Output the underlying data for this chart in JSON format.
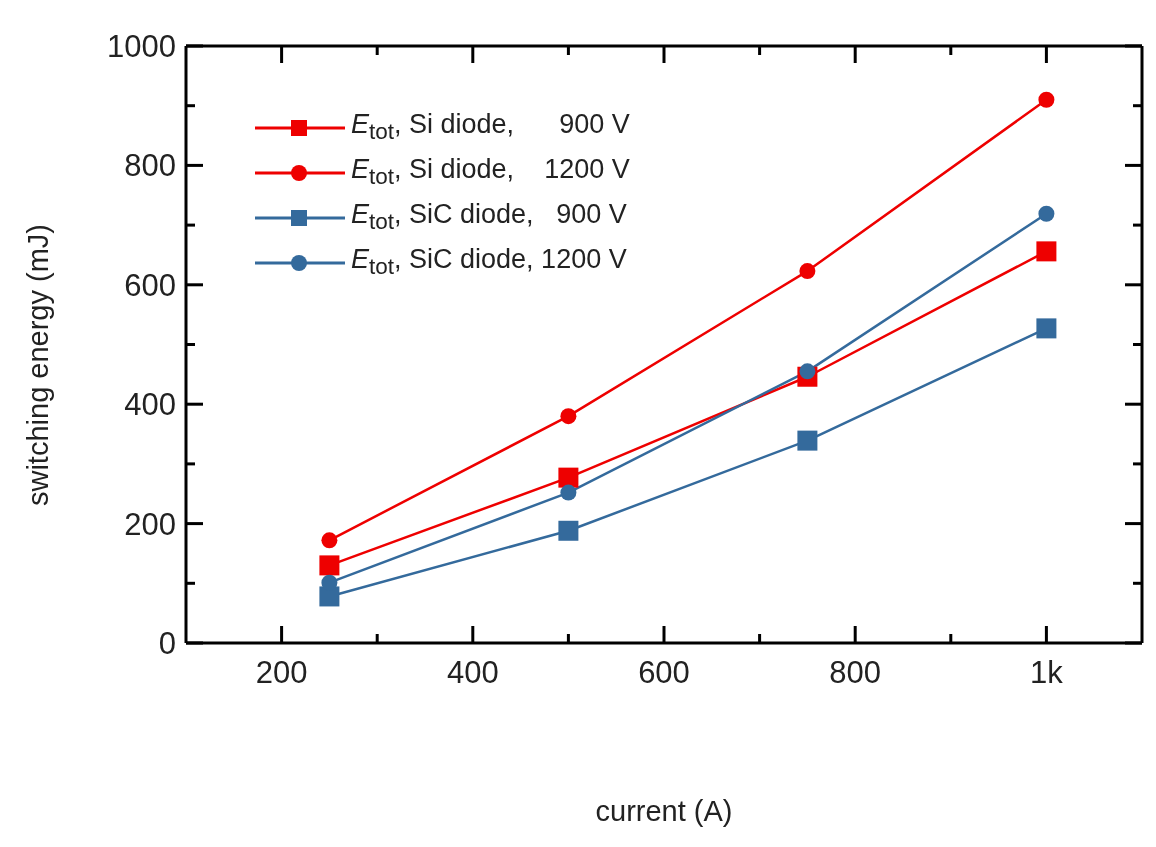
{
  "chart_data": {
    "type": "line",
    "xlabel": "current (A)",
    "ylabel": "switching energy (mJ)",
    "x": [
      250,
      500,
      750,
      1000
    ],
    "xlim": [
      100,
      1100
    ],
    "xticks": [
      {
        "value": 200,
        "label": "200"
      },
      {
        "value": 300,
        "label": null
      },
      {
        "value": 400,
        "label": "400"
      },
      {
        "value": 500,
        "label": null
      },
      {
        "value": 600,
        "label": "600"
      },
      {
        "value": 700,
        "label": null
      },
      {
        "value": 800,
        "label": "800"
      },
      {
        "value": 900,
        "label": null
      },
      {
        "value": 1000,
        "label": "1k"
      }
    ],
    "ylim": [
      0,
      1000
    ],
    "yticks": [
      0,
      {
        "value": 100,
        "label": null
      },
      200,
      {
        "value": 300,
        "label": null
      },
      400,
      {
        "value": 500,
        "label": null
      },
      600,
      {
        "value": 700,
        "label": null
      },
      800,
      {
        "value": 900,
        "label": null
      },
      1000
    ],
    "grid": false,
    "legend": "top left",
    "line_style": "solid",
    "series": [
      {
        "name": "E$_{tot}$, Si diode,      900 V",
        "color": "#ee0000",
        "marker": "square",
        "values": [
          130,
          277,
          446,
          656
        ]
      },
      {
        "name": "E$_{tot}$, Si diode,    1200 V",
        "color": "#ee0000",
        "marker": "circle",
        "values": [
          172,
          380,
          623,
          910
        ]
      },
      {
        "name": "E$_{tot}$, SiC diode,   900 V",
        "color": "#346a9c",
        "marker": "square",
        "values": [
          78,
          188,
          339,
          527
        ]
      },
      {
        "name": "E$_{tot}$, SiC diode, 1200 V",
        "color": "#346a9c",
        "marker": "circle",
        "values": [
          101,
          252,
          455,
          719
        ]
      }
    ]
  }
}
